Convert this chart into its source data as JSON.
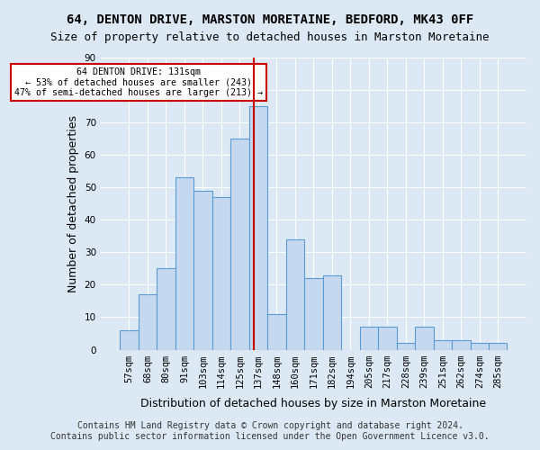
{
  "title1": "64, DENTON DRIVE, MARSTON MORETAINE, BEDFORD, MK43 0FF",
  "title2": "Size of property relative to detached houses in Marston Moretaine",
  "xlabel": "Distribution of detached houses by size in Marston Moretaine",
  "ylabel": "Number of detached properties",
  "categories": [
    "57sqm",
    "68sqm",
    "80sqm",
    "91sqm",
    "103sqm",
    "114sqm",
    "125sqm",
    "137sqm",
    "148sqm",
    "160sqm",
    "171sqm",
    "182sqm",
    "194sqm",
    "205sqm",
    "217sqm",
    "228sqm",
    "239sqm",
    "251sqm",
    "262sqm",
    "274sqm",
    "285sqm"
  ],
  "values": [
    6,
    17,
    25,
    53,
    49,
    47,
    65,
    75,
    11,
    34,
    22,
    23,
    0,
    7,
    7,
    2,
    7,
    3,
    3,
    2,
    2
  ],
  "bar_color": "#c5d8f0",
  "bar_edge_color": "#5b9bd5",
  "background_color": "#dce9f5",
  "grid_color": "#ffffff",
  "vline_x": 6.77,
  "vline_color": "#cc0000",
  "annotation_text": "64 DENTON DRIVE: 131sqm\n← 53% of detached houses are smaller (243)\n47% of semi-detached houses are larger (213) →",
  "annotation_box_color": "#ffffff",
  "annotation_box_edge": "#cc0000",
  "ylim": [
    0,
    90
  ],
  "yticks": [
    0,
    10,
    20,
    30,
    40,
    50,
    60,
    70,
    80,
    90
  ],
  "footer1": "Contains HM Land Registry data © Crown copyright and database right 2024.",
  "footer2": "Contains public sector information licensed under the Open Government Licence v3.0.",
  "title1_fontsize": 10,
  "title2_fontsize": 9,
  "xlabel_fontsize": 9,
  "ylabel_fontsize": 9,
  "tick_fontsize": 7.5,
  "footer_fontsize": 7
}
